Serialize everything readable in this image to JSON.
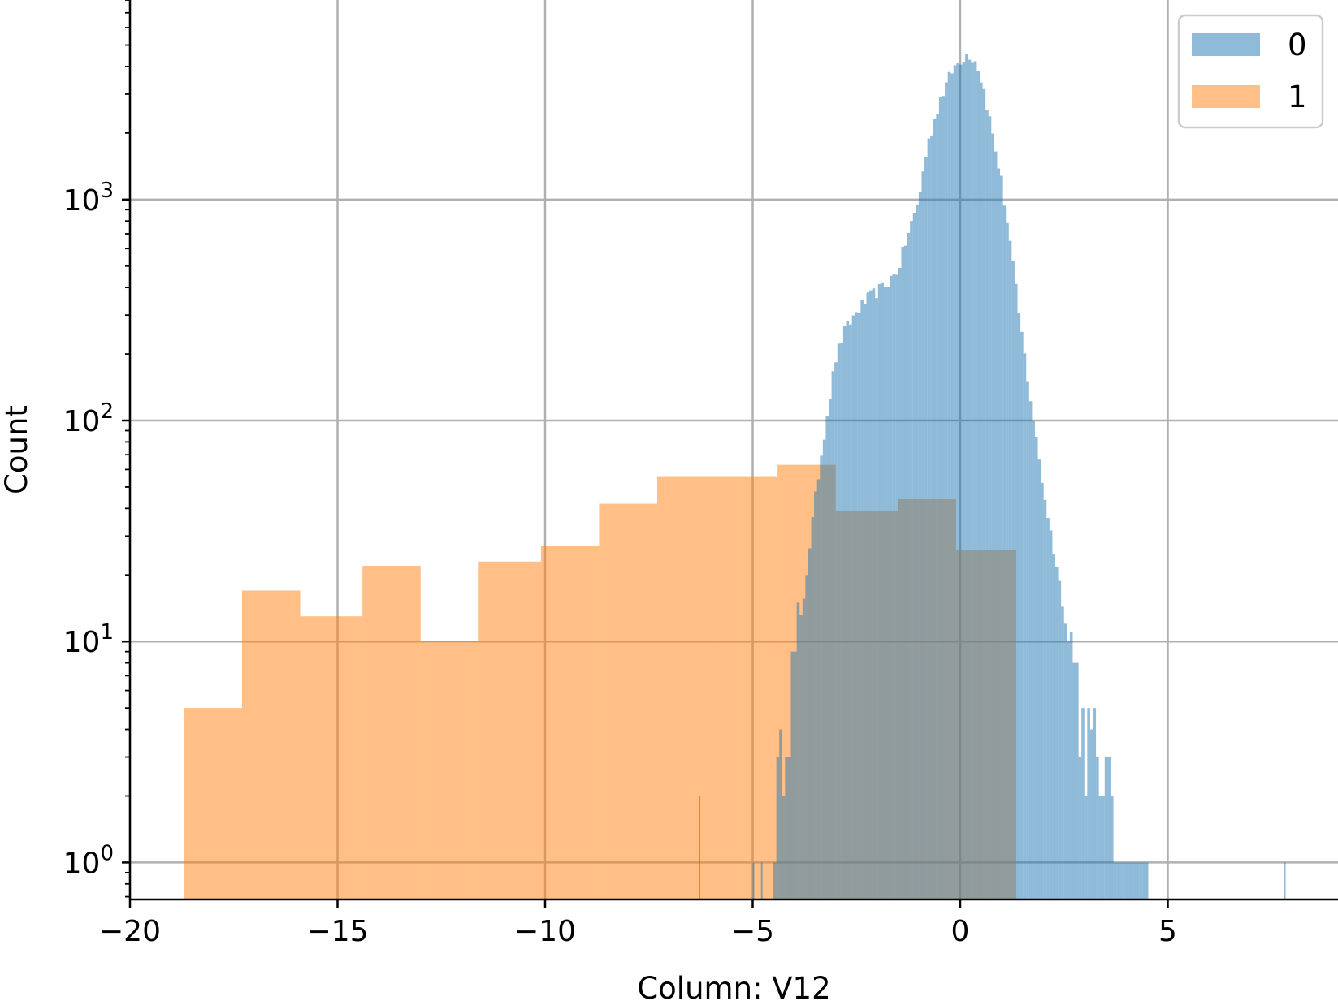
{
  "chart_data": {
    "type": "bar",
    "subtype": "histogram",
    "xlabel": "Column: V12",
    "ylabel": "Count",
    "xlim": [
      -20,
      9.1
    ],
    "ylim": [
      0.68,
      8000
    ],
    "yscale": "log",
    "grid": true,
    "legend_position": "top-right",
    "x_ticks": [
      {
        "value": -20,
        "label": "−20"
      },
      {
        "value": -15,
        "label": "−15"
      },
      {
        "value": -10,
        "label": "−10"
      },
      {
        "value": -5,
        "label": "−5"
      },
      {
        "value": 0,
        "label": "0"
      },
      {
        "value": 5,
        "label": "5"
      }
    ],
    "y_ticks": [
      {
        "value": 1,
        "base": "10",
        "exp": "0"
      },
      {
        "value": 10,
        "base": "10",
        "exp": "1"
      },
      {
        "value": 100,
        "base": "10",
        "exp": "2"
      },
      {
        "value": 1000,
        "base": "10",
        "exp": "3"
      }
    ],
    "series": [
      {
        "name": "0",
        "color": "#1f77b4",
        "opacity": 0.5,
        "bin_width": 0.07,
        "profile": [
          {
            "x": -4.5,
            "count": 1
          },
          {
            "x": -4.4,
            "count": 2
          },
          {
            "x": -4.3,
            "count": 3
          },
          {
            "x": -4.2,
            "count": 5
          },
          {
            "x": -4.0,
            "count": 8
          },
          {
            "x": -3.8,
            "count": 14
          },
          {
            "x": -3.6,
            "count": 30
          },
          {
            "x": -3.4,
            "count": 60
          },
          {
            "x": -3.2,
            "count": 110
          },
          {
            "x": -3.0,
            "count": 190
          },
          {
            "x": -2.8,
            "count": 250
          },
          {
            "x": -2.5,
            "count": 310
          },
          {
            "x": -2.2,
            "count": 360
          },
          {
            "x": -1.8,
            "count": 410
          },
          {
            "x": -1.5,
            "count": 480
          },
          {
            "x": -1.3,
            "count": 650
          },
          {
            "x": -1.0,
            "count": 1000
          },
          {
            "x": -0.8,
            "count": 1700
          },
          {
            "x": -0.5,
            "count": 2800
          },
          {
            "x": -0.2,
            "count": 3800
          },
          {
            "x": 0.0,
            "count": 4300
          },
          {
            "x": 0.2,
            "count": 4600
          },
          {
            "x": 0.4,
            "count": 4200
          },
          {
            "x": 0.6,
            "count": 3000
          },
          {
            "x": 0.8,
            "count": 1900
          },
          {
            "x": 1.0,
            "count": 1200
          },
          {
            "x": 1.2,
            "count": 650
          },
          {
            "x": 1.4,
            "count": 320
          },
          {
            "x": 1.6,
            "count": 170
          },
          {
            "x": 1.8,
            "count": 90
          },
          {
            "x": 2.0,
            "count": 50
          },
          {
            "x": 2.2,
            "count": 30
          },
          {
            "x": 2.4,
            "count": 18
          },
          {
            "x": 2.6,
            "count": 11
          },
          {
            "x": 2.8,
            "count": 7
          },
          {
            "x": 3.0,
            "count": 4
          },
          {
            "x": 3.3,
            "count": 3
          },
          {
            "x": 3.6,
            "count": 2
          },
          {
            "x": 4.0,
            "count": 1
          },
          {
            "x": 4.5,
            "count": 1
          }
        ],
        "isolated_bins": [
          {
            "x": -6.3,
            "count": 2
          },
          {
            "x": -5.0,
            "count": 1
          },
          {
            "x": -4.8,
            "count": 1
          },
          {
            "x": 7.8,
            "count": 1
          }
        ]
      },
      {
        "name": "1",
        "color": "#ff7f0e",
        "opacity": 0.5,
        "bins": [
          {
            "x0": -18.7,
            "x1": -17.3,
            "count": 5
          },
          {
            "x0": -17.3,
            "x1": -15.9,
            "count": 17
          },
          {
            "x0": -15.9,
            "x1": -14.4,
            "count": 13
          },
          {
            "x0": -14.4,
            "x1": -13.0,
            "count": 22
          },
          {
            "x0": -13.0,
            "x1": -11.6,
            "count": 10
          },
          {
            "x0": -11.6,
            "x1": -10.1,
            "count": 23
          },
          {
            "x0": -10.1,
            "x1": -8.7,
            "count": 27
          },
          {
            "x0": -8.7,
            "x1": -7.3,
            "count": 42
          },
          {
            "x0": -7.3,
            "x1": -5.8,
            "count": 56
          },
          {
            "x0": -5.8,
            "x1": -4.4,
            "count": 56
          },
          {
            "x0": -4.4,
            "x1": -3.0,
            "count": 63
          },
          {
            "x0": -3.0,
            "x1": -1.5,
            "count": 39
          },
          {
            "x0": -1.5,
            "x1": -0.1,
            "count": 44
          },
          {
            "x0": -0.1,
            "x1": 1.35,
            "count": 26
          }
        ]
      }
    ]
  }
}
